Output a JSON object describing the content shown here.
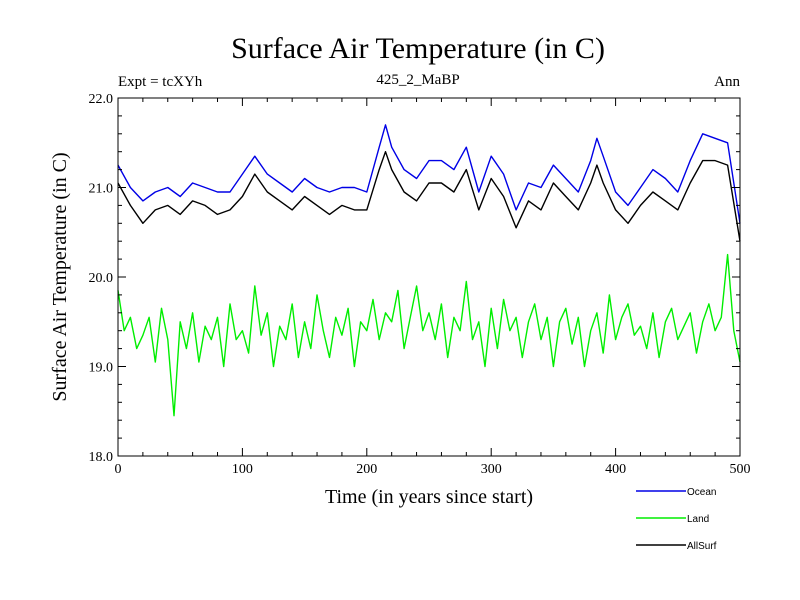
{
  "header": {
    "title": "Surface Air Temperature (in C)",
    "left_label": "Expt = tcXYh",
    "center_label": "425_2_MaBP",
    "right_label": "Ann"
  },
  "legend": {
    "placement": "bottom-right",
    "items": [
      {
        "name": "Ocean",
        "color": "#0000e6"
      },
      {
        "name": "Land",
        "color": "#00ee00"
      },
      {
        "name": "AllSurf",
        "color": "#000000"
      }
    ]
  },
  "chart_data": {
    "type": "line",
    "title": "Surface Air Temperature (in C)",
    "xlabel": "Time (in years since start)",
    "ylabel": "Surface Air Temperature (in C)",
    "xlim": [
      0,
      500
    ],
    "ylim": [
      18.0,
      22.0
    ],
    "xticks": [
      0,
      100,
      200,
      300,
      400,
      500
    ],
    "xtick_labels": [
      "0",
      "100",
      "200",
      "300",
      "400",
      "500"
    ],
    "yticks": [
      18.0,
      19.0,
      20.0,
      21.0,
      22.0
    ],
    "ytick_labels": [
      "18.0",
      "19.0",
      "20.0",
      "21.0",
      "22.0"
    ],
    "grid": false,
    "series": [
      {
        "name": "Ocean",
        "color": "#0000e6",
        "x": [
          0,
          10,
          20,
          30,
          40,
          50,
          60,
          70,
          80,
          90,
          100,
          110,
          120,
          130,
          140,
          150,
          160,
          170,
          180,
          190,
          200,
          210,
          215,
          220,
          230,
          240,
          250,
          260,
          270,
          280,
          290,
          300,
          310,
          320,
          330,
          340,
          350,
          360,
          370,
          380,
          385,
          390,
          400,
          410,
          420,
          430,
          440,
          450,
          460,
          470,
          480,
          490,
          500
        ],
        "values": [
          21.25,
          21.0,
          20.85,
          20.95,
          21.0,
          20.9,
          21.05,
          21.0,
          20.95,
          20.95,
          21.15,
          21.35,
          21.15,
          21.05,
          20.95,
          21.1,
          21.0,
          20.95,
          21.0,
          21.0,
          20.95,
          21.45,
          21.7,
          21.45,
          21.2,
          21.1,
          21.3,
          21.3,
          21.2,
          21.45,
          20.95,
          21.35,
          21.15,
          20.75,
          21.05,
          21.0,
          21.25,
          21.1,
          20.95,
          21.3,
          21.55,
          21.35,
          20.95,
          20.8,
          21.0,
          21.2,
          21.1,
          20.95,
          21.3,
          21.6,
          21.55,
          21.5,
          20.6
        ]
      },
      {
        "name": "Land",
        "color": "#00ee00",
        "x": [
          0,
          5,
          10,
          15,
          20,
          25,
          30,
          35,
          40,
          45,
          50,
          55,
          60,
          65,
          70,
          75,
          80,
          85,
          90,
          95,
          100,
          105,
          110,
          115,
          120,
          125,
          130,
          135,
          140,
          145,
          150,
          155,
          160,
          165,
          170,
          175,
          180,
          185,
          190,
          195,
          200,
          205,
          210,
          215,
          220,
          225,
          230,
          235,
          240,
          245,
          250,
          255,
          260,
          265,
          270,
          275,
          280,
          285,
          290,
          295,
          300,
          305,
          310,
          315,
          320,
          325,
          330,
          335,
          340,
          345,
          350,
          355,
          360,
          365,
          370,
          375,
          380,
          385,
          390,
          395,
          400,
          405,
          410,
          415,
          420,
          425,
          430,
          435,
          440,
          445,
          450,
          455,
          460,
          465,
          470,
          475,
          480,
          485,
          490,
          495,
          500
        ],
        "values": [
          19.85,
          19.4,
          19.55,
          19.2,
          19.35,
          19.55,
          19.05,
          19.65,
          19.3,
          18.45,
          19.5,
          19.2,
          19.6,
          19.05,
          19.45,
          19.3,
          19.55,
          19.0,
          19.7,
          19.3,
          19.4,
          19.15,
          19.9,
          19.35,
          19.6,
          19.0,
          19.45,
          19.3,
          19.7,
          19.1,
          19.5,
          19.2,
          19.8,
          19.4,
          19.1,
          19.55,
          19.35,
          19.65,
          19.0,
          19.5,
          19.4,
          19.75,
          19.3,
          19.6,
          19.5,
          19.85,
          19.2,
          19.55,
          19.9,
          19.4,
          19.6,
          19.3,
          19.7,
          19.1,
          19.55,
          19.4,
          19.95,
          19.3,
          19.5,
          19.0,
          19.65,
          19.2,
          19.75,
          19.4,
          19.55,
          19.1,
          19.5,
          19.7,
          19.3,
          19.55,
          19.0,
          19.5,
          19.65,
          19.25,
          19.55,
          19.0,
          19.4,
          19.6,
          19.15,
          19.8,
          19.3,
          19.55,
          19.7,
          19.35,
          19.45,
          19.2,
          19.6,
          19.1,
          19.5,
          19.65,
          19.3,
          19.45,
          19.6,
          19.15,
          19.5,
          19.7,
          19.4,
          19.55,
          20.25,
          19.4,
          19.05
        ]
      },
      {
        "name": "AllSurf",
        "color": "#000000",
        "x": [
          0,
          10,
          20,
          30,
          40,
          50,
          60,
          70,
          80,
          90,
          100,
          110,
          120,
          130,
          140,
          150,
          160,
          170,
          180,
          190,
          200,
          210,
          215,
          220,
          230,
          240,
          250,
          260,
          270,
          280,
          290,
          300,
          310,
          320,
          330,
          340,
          350,
          360,
          370,
          380,
          385,
          390,
          400,
          410,
          420,
          430,
          440,
          450,
          460,
          470,
          480,
          490,
          500
        ],
        "values": [
          21.05,
          20.8,
          20.6,
          20.75,
          20.8,
          20.7,
          20.85,
          20.8,
          20.7,
          20.75,
          20.9,
          21.15,
          20.95,
          20.85,
          20.75,
          20.9,
          20.8,
          20.7,
          20.8,
          20.75,
          20.75,
          21.2,
          21.4,
          21.2,
          20.95,
          20.85,
          21.05,
          21.05,
          20.95,
          21.2,
          20.75,
          21.1,
          20.9,
          20.55,
          20.85,
          20.75,
          21.05,
          20.9,
          20.75,
          21.05,
          21.25,
          21.05,
          20.75,
          20.6,
          20.8,
          20.95,
          20.85,
          20.75,
          21.05,
          21.3,
          21.3,
          21.25,
          20.4
        ]
      }
    ]
  }
}
